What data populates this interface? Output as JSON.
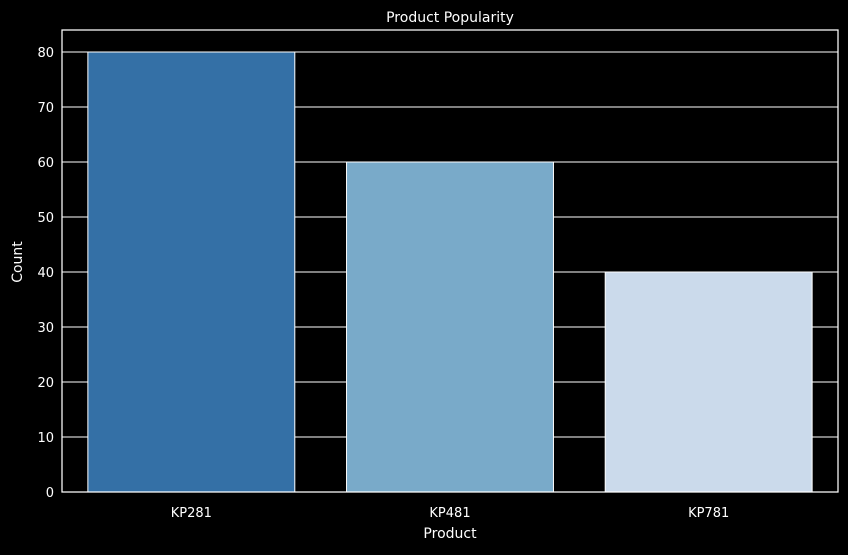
{
  "chart_data": {
    "type": "bar",
    "title": "Product Popularity",
    "xlabel": "Product",
    "ylabel": "Count",
    "categories": [
      "KP281",
      "KP481",
      "KP781"
    ],
    "values": [
      80,
      60,
      40
    ],
    "ylim": [
      0,
      84
    ],
    "yticks": [
      0,
      10,
      20,
      30,
      40,
      50,
      60,
      70,
      80
    ],
    "grid": true,
    "bar_colors": [
      "#3470a6",
      "#79aac9",
      "#cbdaeb"
    ],
    "background_color": "#000000",
    "grid_color": "#ffffff",
    "bar_edge_color": "#ffffff"
  }
}
